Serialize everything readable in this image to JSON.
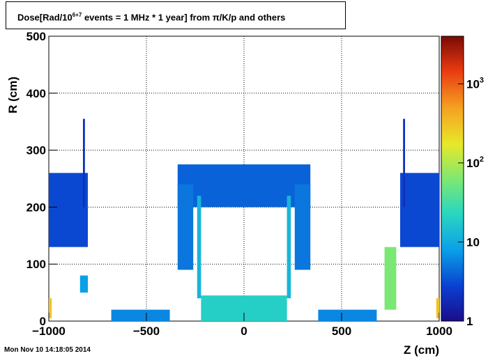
{
  "chart_data": {
    "type": "heatmap",
    "title_prefix": "Dose[Rad/10",
    "title_sup": "6+7",
    "title_suffix": " events = 1 MHz * 1 year] from π/K/p and others",
    "xlabel": "Z (cm)",
    "ylabel": "R (cm)",
    "xlim": [
      -1000,
      1000
    ],
    "ylim": [
      0,
      500
    ],
    "x_ticks": [
      -1000,
      -500,
      0,
      500,
      1000
    ],
    "x_tick_labels": [
      "−1000",
      "−500",
      "0",
      "500",
      "1000"
    ],
    "y_ticks": [
      0,
      100,
      200,
      300,
      400,
      500
    ],
    "y_tick_labels": [
      "0",
      "100",
      "200",
      "300",
      "400",
      "500"
    ],
    "grid": true,
    "colorbar": {
      "scale": "log",
      "range": [
        1,
        4000
      ],
      "ticks": [
        {
          "value": 1,
          "base": "1",
          "exp": ""
        },
        {
          "value": 10,
          "base": "10",
          "exp": ""
        },
        {
          "value": 100,
          "base": "10",
          "exp": "2"
        },
        {
          "value": 1000,
          "base": "10",
          "exp": "3"
        }
      ]
    },
    "regions": [
      {
        "name": "left-endcap-wedge",
        "z": [
          -1000,
          -800
        ],
        "r": [
          130,
          260
        ],
        "dose": 3
      },
      {
        "name": "left-spike",
        "z": [
          -825,
          -815
        ],
        "r": [
          200,
          355
        ],
        "dose": 2
      },
      {
        "name": "right-endcap-wedge",
        "z": [
          800,
          1000
        ],
        "r": [
          130,
          260
        ],
        "dose": 3
      },
      {
        "name": "right-spike",
        "z": [
          815,
          825
        ],
        "r": [
          200,
          355
        ],
        "dose": 2
      },
      {
        "name": "left-forward-spot",
        "z": [
          -1000,
          -985
        ],
        "r": [
          5,
          40
        ],
        "dose": 300
      },
      {
        "name": "right-forward-spot",
        "z": [
          985,
          1000
        ],
        "r": [
          5,
          40
        ],
        "dose": 300
      },
      {
        "name": "left-mid-block",
        "z": [
          -840,
          -800
        ],
        "r": [
          50,
          80
        ],
        "dose": 8
      },
      {
        "name": "right-inner-column",
        "z": [
          720,
          780
        ],
        "r": [
          20,
          130
        ],
        "dose": 60
      },
      {
        "name": "barrel-top-arc",
        "z": [
          -340,
          340
        ],
        "r": [
          200,
          275
        ],
        "dose": 4
      },
      {
        "name": "barrel-outer-left",
        "z": [
          -340,
          -260
        ],
        "r": [
          90,
          240
        ],
        "dose": 5
      },
      {
        "name": "barrel-outer-right",
        "z": [
          260,
          340
        ],
        "r": [
          90,
          240
        ],
        "dose": 5
      },
      {
        "name": "barrel-inner-left",
        "z": [
          -240,
          -220
        ],
        "r": [
          40,
          220
        ],
        "dose": 12
      },
      {
        "name": "barrel-inner-right",
        "z": [
          220,
          240
        ],
        "r": [
          40,
          220
        ],
        "dose": 12
      },
      {
        "name": "beamline-left",
        "z": [
          -680,
          -380
        ],
        "r": [
          0,
          20
        ],
        "dose": 6
      },
      {
        "name": "beamline-right",
        "z": [
          380,
          680
        ],
        "r": [
          0,
          20
        ],
        "dose": 6
      },
      {
        "name": "central-tracker",
        "z": [
          -220,
          220
        ],
        "r": [
          0,
          45
        ],
        "dose": 20
      }
    ]
  },
  "timestamp": "Mon Nov 10 14:18:05 2014"
}
